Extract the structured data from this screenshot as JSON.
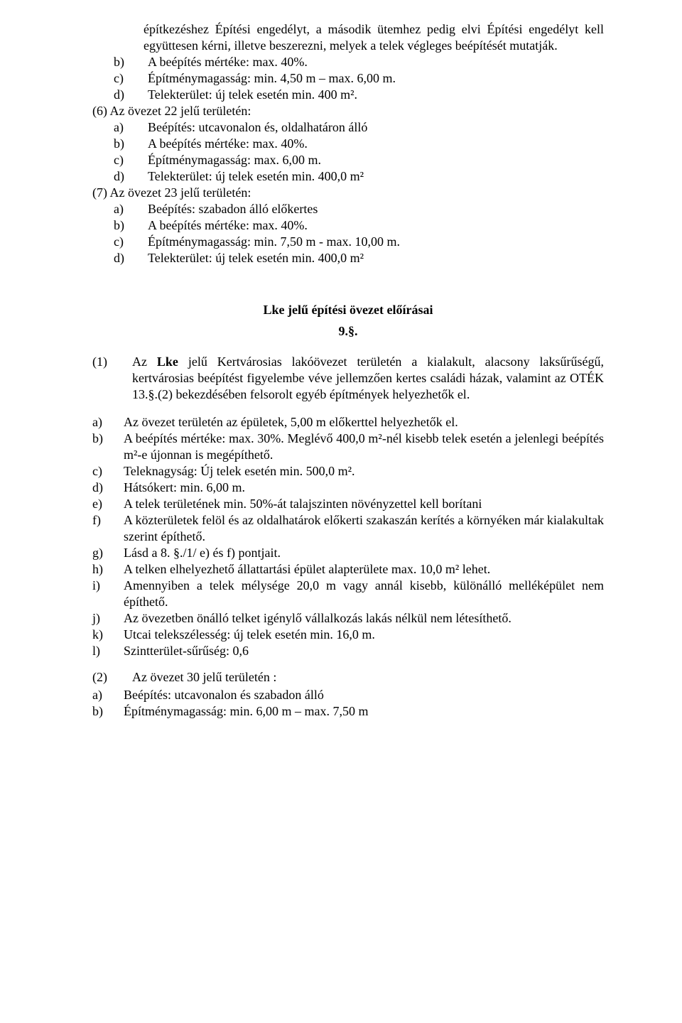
{
  "intro": {
    "text": "építkezéshez Építési engedélyt, a második ütemhez pedig elvi Építési engedélyt kell együttesen kérni, illetve beszerezni, melyek a telek végleges beépítését mutatják."
  },
  "intro_list": [
    {
      "label": "b)",
      "text": "A beépítés mértéke: max. 40%."
    },
    {
      "label": "c)",
      "text": "Építménymagasság: min. 4,50 m – max. 6,00 m."
    },
    {
      "label": "d)",
      "text": "Telekterület: új telek esetén min. 400 m²."
    }
  ],
  "group6": {
    "head": "(6) Az övezet 22 jelű területén:",
    "items": [
      {
        "label": "a)",
        "text": "Beépítés: utcavonalon és, oldalhatáron álló"
      },
      {
        "label": "b)",
        "text": "A beépítés mértéke: max. 40%."
      },
      {
        "label": "c)",
        "text": "Építménymagasság: max. 6,00 m."
      },
      {
        "label": "d)",
        "text": "Telekterület: új telek esetén min. 400,0 m²"
      }
    ]
  },
  "group7": {
    "head": "(7) Az övezet 23 jelű területén:",
    "items": [
      {
        "label": "a)",
        "text": "Beépítés: szabadon álló előkertes"
      },
      {
        "label": "b)",
        "text": "A beépítés mértéke: max. 40%."
      },
      {
        "label": "c)",
        "text": "Építménymagasság: min. 7,50 m - max. 10,00 m."
      },
      {
        "label": "d)",
        "text": "Telekterület: új telek esetén min. 400,0 m²"
      }
    ]
  },
  "section": {
    "title": "Lke jelű építési övezet előírásai",
    "num": "9.§."
  },
  "p1": {
    "label": "(1)",
    "text_pre": "Az ",
    "bold1": "Lke",
    "text_post": " jelű Kertvárosias lakóövezet területén a kialakult, alacsony laksűrűségű, kertvárosias beépítést figyelembe véve jellemzően kertes családi házak, valamint az OTÉK 13.§.(2) bekezdésében felsorolt egyéb építmények helyezhetők el."
  },
  "abc": [
    {
      "label": "a)",
      "text": "Az övezet területén az épületek, 5,00 m előkerttel helyezhetők el."
    },
    {
      "label": "b)",
      "text": "A beépítés mértéke: max. 30%. Meglévő 400,0 m²-nél kisebb telek esetén a jelenlegi beépítés m²-e újonnan is megépíthető."
    },
    {
      "label": "c)",
      "text": "Teleknagyság: Új telek esetén min. 500,0 m²."
    },
    {
      "label": "d)",
      "text": "Hátsókert: min. 6,00 m."
    },
    {
      "label": "e)",
      "text": "A telek területének min. 50%-át talajszinten növényzettel kell borítani"
    },
    {
      "label": "f)",
      "text": "A közterületek felöl és az oldalhatárok előkerti szakaszán kerítés a környéken már kialakultak szerint építhető."
    },
    {
      "label": "g)",
      "text": "Lásd a 8. §./1/ e) és f) pontjait."
    },
    {
      "label": "h)",
      "text": "A telken elhelyezhető állattartási épület alapterülete max. 10,0 m² lehet."
    },
    {
      "label": "i)",
      "text": "Amennyiben a telek mélysége 20,0 m vagy annál kisebb, különálló melléképület nem építhető."
    },
    {
      "label": "j)",
      "text": "Az övezetben önálló telket igénylő vállalkozás lakás nélkül nem létesíthető."
    },
    {
      "label": "k)",
      "text": "Utcai telekszélesség: új telek esetén min. 16,0 m."
    },
    {
      "label": "l)",
      "text": "Szintterület-sűrűség: 0,6"
    }
  ],
  "p2": {
    "label": "(2)",
    "text": "Az övezet 30 jelű területén :"
  },
  "p2_items": [
    {
      "label": "a)",
      "text": "Beépítés: utcavonalon és szabadon álló"
    },
    {
      "label": "b)",
      "text": "Építménymagasság: min. 6,00 m – max. 7,50 m"
    }
  ]
}
